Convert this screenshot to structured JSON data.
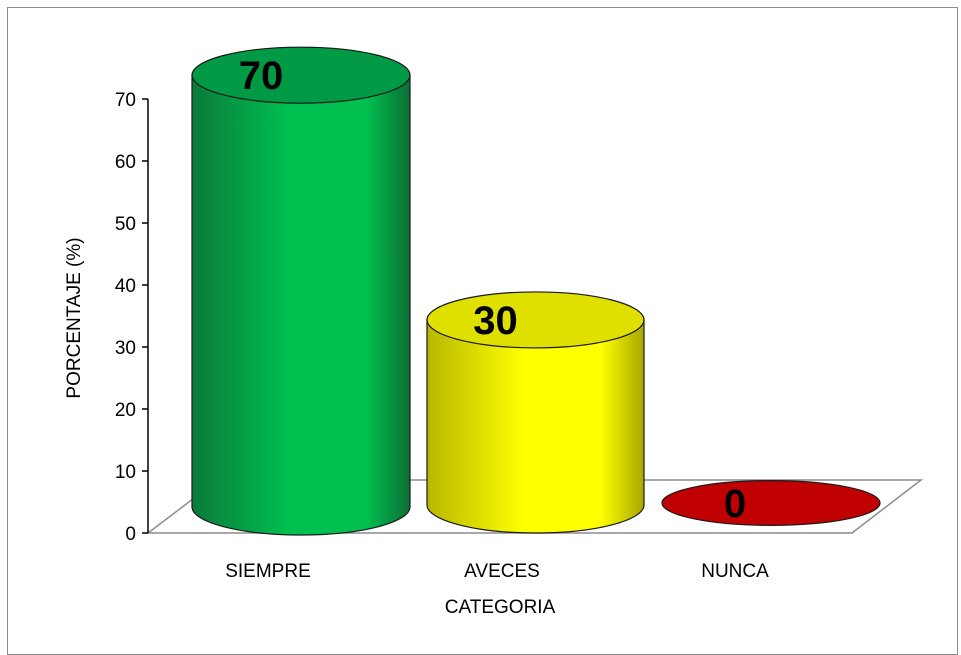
{
  "chart_data": {
    "type": "bar",
    "style": "3d-cylinder",
    "categories": [
      "SIEMPRE",
      "AVECES",
      "NUNCA"
    ],
    "values": [
      70,
      30,
      0
    ],
    "data_labels": [
      "70",
      "30",
      "0"
    ],
    "title": "",
    "xlabel": "CATEGORIA",
    "ylabel": "PORCENTAJE (%)",
    "ylim": [
      0,
      70
    ],
    "yticks": [
      "0",
      "10",
      "20",
      "30",
      "40",
      "50",
      "60",
      "70"
    ],
    "grid": false,
    "legend": "none",
    "colors": [
      "#00b050",
      "#ffff00",
      "#c00000"
    ]
  }
}
